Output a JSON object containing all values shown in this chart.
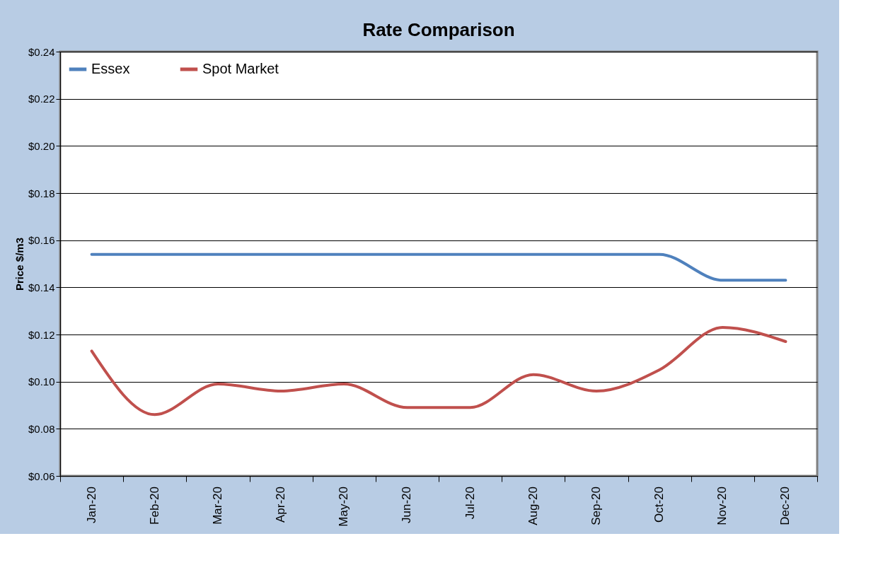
{
  "chart_data": {
    "type": "line",
    "title": "Rate Comparison",
    "ylabel": "Price $/m3",
    "categories": [
      "Jan-20",
      "Feb-20",
      "Mar-20",
      "Apr-20",
      "May-20",
      "Jun-20",
      "Jul-20",
      "Aug-20",
      "Sep-20",
      "Oct-20",
      "Nov-20",
      "Dec-20"
    ],
    "series": [
      {
        "name": "Essex",
        "color": "#4f81bd",
        "values": [
          0.154,
          0.154,
          0.154,
          0.154,
          0.154,
          0.154,
          0.154,
          0.154,
          0.154,
          0.154,
          0.143,
          0.143
        ]
      },
      {
        "name": "Spot Market",
        "color": "#c0504d",
        "values": [
          0.113,
          0.086,
          0.099,
          0.096,
          0.099,
          0.089,
          0.089,
          0.103,
          0.096,
          0.105,
          0.123,
          0.117
        ]
      }
    ],
    "ylim": [
      0.06,
      0.24
    ],
    "yticks": [
      {
        "value": 0.06,
        "label": "$0.06"
      },
      {
        "value": 0.08,
        "label": "$0.08"
      },
      {
        "value": 0.1,
        "label": "$0.10"
      },
      {
        "value": 0.12,
        "label": "$0.12"
      },
      {
        "value": 0.14,
        "label": "$0.14"
      },
      {
        "value": 0.16,
        "label": "$0.16"
      },
      {
        "value": 0.18,
        "label": "$0.18"
      },
      {
        "value": 0.2,
        "label": "$0.20"
      },
      {
        "value": 0.22,
        "label": "$0.22"
      },
      {
        "value": 0.24,
        "label": "$0.24"
      }
    ],
    "grid": "y",
    "legend": "top",
    "marker": "none",
    "line_style": "solid"
  }
}
